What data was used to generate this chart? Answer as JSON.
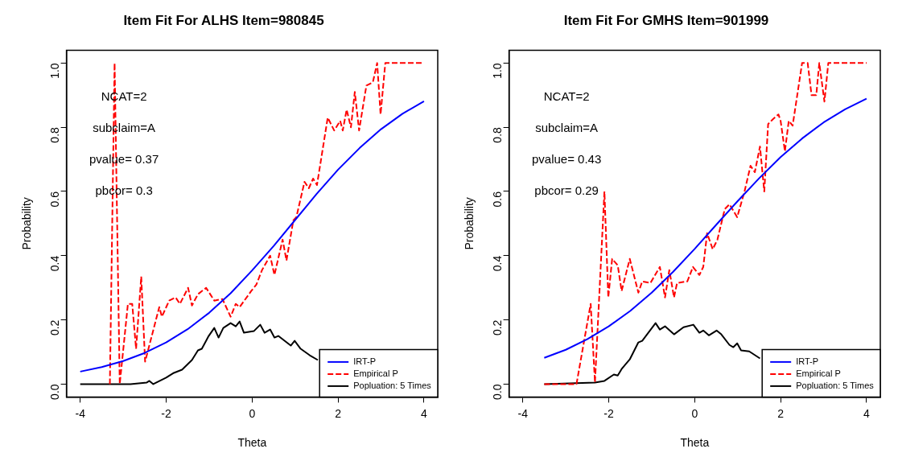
{
  "chart_data": [
    {
      "type": "line",
      "title": "Item Fit For ALHS Item=980845",
      "xlabel": "Theta",
      "ylabel": "Probability",
      "xlim": [
        -4.32,
        4.32
      ],
      "xticks": [
        -4,
        -2,
        0,
        2,
        4
      ],
      "ylim": [
        -0.04,
        1.04
      ],
      "yticks": [
        {
          "value": 0,
          "label": "0.0"
        },
        {
          "value": 0.2,
          "label": "0.2"
        },
        {
          "value": 0.4,
          "label": "0.4"
        },
        {
          "value": 0.6,
          "label": "0.6"
        },
        {
          "value": 0.8,
          "label": "0.8"
        },
        {
          "value": 1,
          "label": "1.0"
        }
      ],
      "grid": false,
      "legend": "bottom right",
      "annotations": [
        "NCAT=2",
        "subclaim=A",
        "pvalue= 0.37",
        "pbcor= 0.3"
      ],
      "series": [
        {
          "name": "IRT-P",
          "color": "#0000ff",
          "line_style": "solid",
          "x": [
            -4,
            -3.5,
            -3,
            -2.5,
            -2,
            -1.5,
            -1,
            -0.5,
            0,
            0.5,
            1,
            1.5,
            2,
            2.5,
            3,
            3.5,
            4
          ],
          "values": [
            0.039,
            0.053,
            0.072,
            0.097,
            0.13,
            0.171,
            0.222,
            0.283,
            0.354,
            0.43,
            0.511,
            0.592,
            0.668,
            0.735,
            0.794,
            0.842,
            0.881
          ]
        },
        {
          "name": "Empirical P",
          "color": "#ff0000",
          "line_style": "dashed",
          "x": [
            -3.31,
            -3.2,
            -3.08,
            -2.89,
            -2.79,
            -2.7,
            -2.58,
            -2.49,
            -2.16,
            -2.1,
            -1.93,
            -1.78,
            -1.68,
            -1.49,
            -1.4,
            -1.26,
            -1.07,
            -0.88,
            -0.69,
            -0.5,
            -0.38,
            -0.29,
            -0.02,
            0.1,
            0.23,
            0.42,
            0.52,
            0.71,
            0.8,
            0.96,
            1.03,
            1.22,
            1.32,
            1.42,
            1.51,
            1.76,
            1.91,
            2.05,
            2.11,
            2.2,
            2.3,
            2.39,
            2.49,
            2.66,
            2.81,
            2.91,
            2.99,
            3.1,
            4
          ],
          "values": [
            0,
            1,
            0,
            0.25,
            0.25,
            0.11,
            0.335,
            0.07,
            0.24,
            0.21,
            0.26,
            0.27,
            0.25,
            0.3,
            0.245,
            0.28,
            0.3,
            0.26,
            0.265,
            0.21,
            0.25,
            0.24,
            0.29,
            0.31,
            0.355,
            0.4,
            0.34,
            0.45,
            0.385,
            0.51,
            0.52,
            0.63,
            0.61,
            0.64,
            0.62,
            0.83,
            0.79,
            0.82,
            0.79,
            0.855,
            0.8,
            0.91,
            0.79,
            0.93,
            0.94,
            1,
            0.84,
            1,
            1
          ]
        },
        {
          "name": "Popluation: 5 Times",
          "color": "#000000",
          "line_style": "solid",
          "x": [
            -4,
            -2.83,
            -2.45,
            -2.39,
            -2.3,
            -2,
            -1.82,
            -1.63,
            -1.4,
            -1.26,
            -1.17,
            -1.01,
            -0.88,
            -0.78,
            -0.67,
            -0.5,
            -0.38,
            -0.29,
            -0.19,
            0.04,
            0.19,
            0.29,
            0.42,
            0.52,
            0.61,
            0.9,
            0.99,
            1.13,
            1.34,
            1.53
          ],
          "values": [
            0,
            0,
            0.005,
            0.01,
            0,
            0.02,
            0.035,
            0.045,
            0.075,
            0.105,
            0.11,
            0.15,
            0.175,
            0.145,
            0.175,
            0.19,
            0.18,
            0.195,
            0.16,
            0.165,
            0.185,
            0.16,
            0.17,
            0.145,
            0.15,
            0.12,
            0.135,
            0.11,
            0.09,
            0.075
          ]
        }
      ]
    },
    {
      "type": "line",
      "title": "Item Fit For GMHS Item=901999",
      "xlabel": "Theta",
      "ylabel": "Probability",
      "xlim": [
        -4.32,
        4.32
      ],
      "xticks": [
        -4,
        -2,
        0,
        2,
        4
      ],
      "ylim": [
        -0.04,
        1.04
      ],
      "yticks": [
        {
          "value": 0,
          "label": "0.0"
        },
        {
          "value": 0.2,
          "label": "0.2"
        },
        {
          "value": 0.4,
          "label": "0.4"
        },
        {
          "value": 0.6,
          "label": "0.6"
        },
        {
          "value": 0.8,
          "label": "0.8"
        },
        {
          "value": 1,
          "label": "1.0"
        }
      ],
      "grid": false,
      "legend": "bottom right",
      "annotations": [
        "NCAT=2",
        "subclaim=A",
        "pvalue= 0.43",
        "pbcor= 0.29"
      ],
      "series": [
        {
          "name": "IRT-P",
          "color": "#0000ff",
          "line_style": "solid",
          "x": [
            -3.5,
            -3,
            -2.5,
            -2,
            -1.5,
            -1,
            -0.5,
            0,
            0.5,
            1,
            1.5,
            2,
            2.5,
            3,
            3.5,
            4
          ],
          "values": [
            0.082,
            0.107,
            0.14,
            0.18,
            0.228,
            0.285,
            0.35,
            0.421,
            0.496,
            0.57,
            0.641,
            0.707,
            0.765,
            0.815,
            0.856,
            0.889
          ]
        },
        {
          "name": "Empirical P",
          "color": "#ff0000",
          "line_style": "dashed",
          "x": [
            -3.5,
            -2.75,
            -2.42,
            -2.32,
            -2.1,
            -2.01,
            -1.92,
            -1.79,
            -1.7,
            -1.51,
            -1.31,
            -1.22,
            -1.03,
            -0.81,
            -0.69,
            -0.59,
            -0.48,
            -0.41,
            -0.17,
            -0.04,
            0.11,
            0.2,
            0.29,
            0.42,
            0.53,
            0.7,
            0.81,
            0.99,
            1.16,
            1.3,
            1.4,
            1.52,
            1.62,
            1.71,
            1.82,
            1.95,
            2,
            2.1,
            2.19,
            2.28,
            2.5,
            2.63,
            2.72,
            2.83,
            2.9,
            3.02,
            3.11,
            4
          ],
          "values": [
            0,
            0,
            0.25,
            0.005,
            0.6,
            0.27,
            0.39,
            0.37,
            0.29,
            0.39,
            0.285,
            0.32,
            0.315,
            0.365,
            0.27,
            0.355,
            0.27,
            0.315,
            0.32,
            0.365,
            0.34,
            0.365,
            0.47,
            0.42,
            0.45,
            0.545,
            0.56,
            0.52,
            0.6,
            0.68,
            0.66,
            0.74,
            0.6,
            0.81,
            0.825,
            0.84,
            0.82,
            0.725,
            0.82,
            0.805,
            1,
            1,
            0.9,
            0.9,
            1,
            0.88,
            1,
            1
          ]
        },
        {
          "name": "Popluation: 5 Times",
          "color": "#000000",
          "line_style": "solid",
          "x": [
            -3.5,
            -2.32,
            -2.1,
            -1.88,
            -1.79,
            -1.7,
            -1.51,
            -1.31,
            -1.22,
            -0.91,
            -0.81,
            -0.69,
            -0.48,
            -0.26,
            -0.03,
            0.11,
            0.2,
            0.33,
            0.51,
            0.62,
            0.81,
            0.9,
            0.99,
            1.08,
            1.27,
            1.52
          ],
          "values": [
            0,
            0.005,
            0.01,
            0.03,
            0.027,
            0.047,
            0.077,
            0.13,
            0.135,
            0.19,
            0.17,
            0.18,
            0.155,
            0.177,
            0.185,
            0.16,
            0.167,
            0.152,
            0.167,
            0.155,
            0.122,
            0.115,
            0.127,
            0.105,
            0.102,
            0.08
          ]
        }
      ]
    }
  ]
}
